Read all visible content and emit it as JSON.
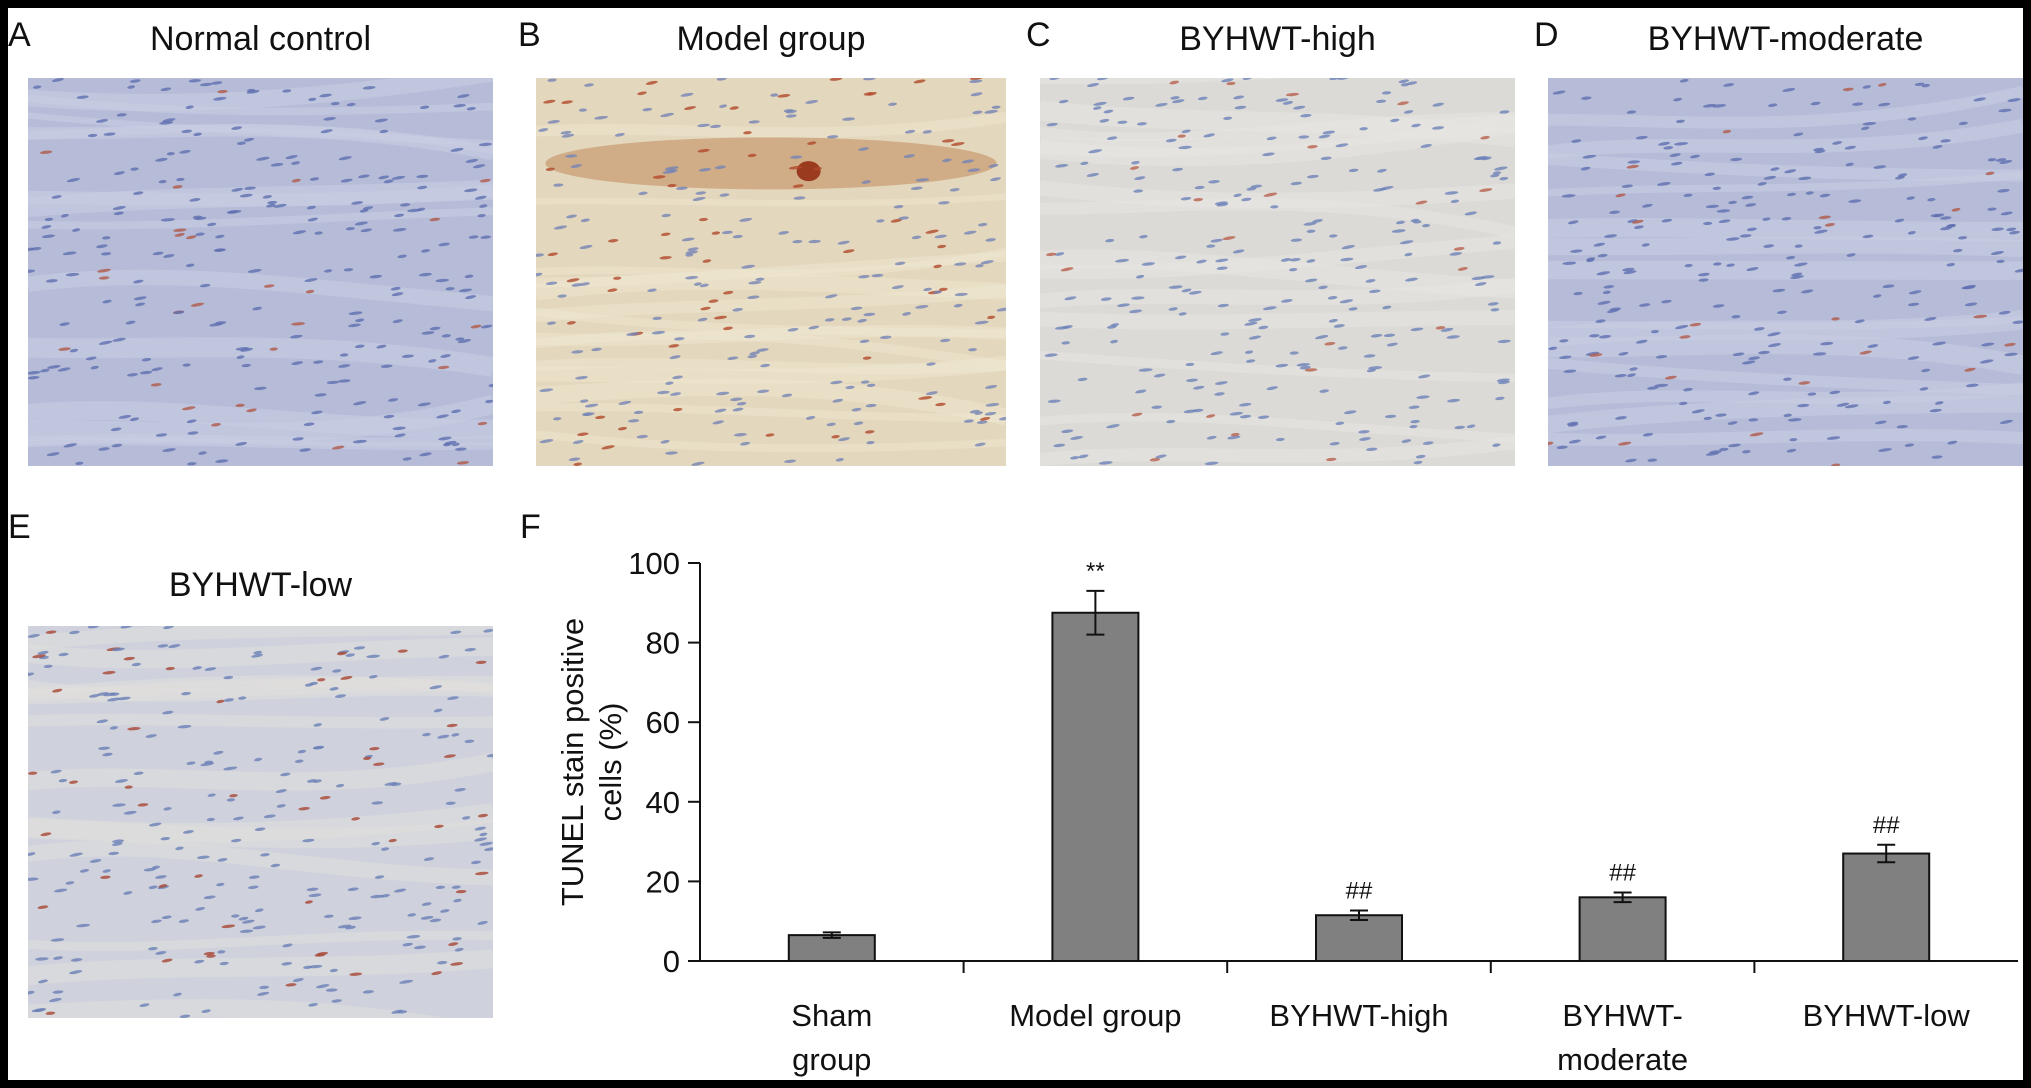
{
  "panels": [
    {
      "letter": "A",
      "title": "Normal control",
      "tone": "blue"
    },
    {
      "letter": "B",
      "title": "Model group",
      "tone": "brown"
    },
    {
      "letter": "C",
      "title": "BYHWT-high",
      "tone": "light"
    },
    {
      "letter": "D",
      "title": "BYHWT-moderate",
      "tone": "blue"
    },
    {
      "letter": "E",
      "title": "BYHWT-low",
      "tone": "mixed"
    }
  ],
  "chart_letter": "F",
  "chart_data": {
    "type": "bar",
    "categories": [
      [
        "Sham",
        "group"
      ],
      [
        "Model group"
      ],
      [
        "BYHWT-high"
      ],
      [
        "BYHWT-",
        "moderate"
      ],
      [
        "BYHWT-low"
      ]
    ],
    "values": [
      6.5,
      87.5,
      11.5,
      16,
      27
    ],
    "errors": [
      0.7,
      5.5,
      1.2,
      1.2,
      2.2
    ],
    "annotations": [
      "",
      "**",
      "##",
      "##",
      "##"
    ],
    "ylabel_lines": [
      "TUNEL stain positive",
      "cells (%)"
    ],
    "ylim": [
      0,
      100
    ],
    "yticks": [
      0,
      20,
      40,
      60,
      80,
      100
    ],
    "bar_color": "#808080"
  }
}
